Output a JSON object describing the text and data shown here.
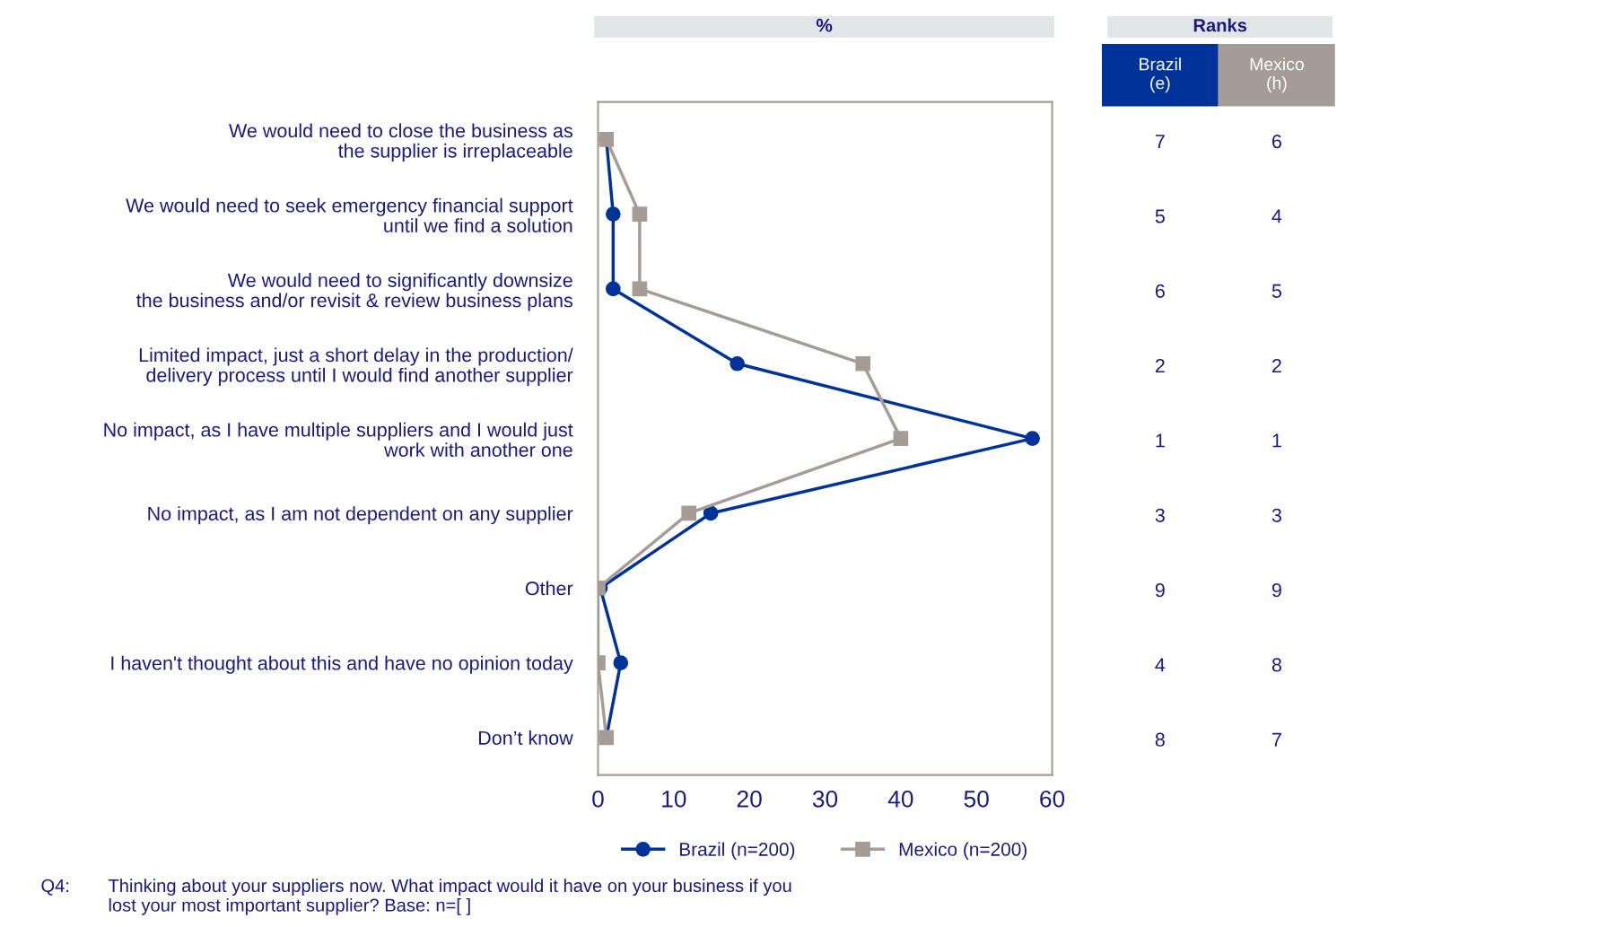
{
  "chart_data": [
    {
      "type": "line",
      "orientation": "horizontal",
      "title": "%",
      "categories": [
        "We would need to close the business as\nthe supplier is irreplaceable",
        "We would need to seek emergency financial support\nuntil we find a solution",
        "We would need to significantly downsize\nthe business and/or revisit & review business plans",
        "Limited impact, just a short delay in the production/\ndelivery process until I would find another supplier",
        "No impact, as I have multiple suppliers and I would just\nwork with another one",
        "No impact, as I am not dependent on any supplier",
        "Other",
        "I haven't thought about this and have no opinion today",
        "Don’t know"
      ],
      "series": [
        {
          "name": "Brazil (n=200)",
          "color": "#003399",
          "marker": "circle",
          "values": [
            1.1,
            2.0,
            2.0,
            18.4,
            57.4,
            14.9,
            0.3,
            3.0,
            1.1
          ]
        },
        {
          "name": "Mexico (n=200)",
          "color": "#a59d95",
          "marker": "square",
          "values": [
            1.1,
            5.5,
            5.5,
            35,
            40,
            12,
            0,
            0,
            1.1
          ]
        }
      ],
      "xlim": [
        0,
        60
      ],
      "xticks": [
        0,
        10,
        20,
        30,
        40,
        50,
        60
      ],
      "grid": false,
      "legend": "bottom",
      "annotations": [
        "Q4:",
        "Thinking about your suppliers now. What impact would it have on your business if you\nlost your most important supplier? Base: n=[ ]"
      ]
    },
    {
      "type": "other",
      "title": "Ranks",
      "colors": [
        "#003399",
        "#a59d95"
      ],
      "annotations": [
        "Brazil\n(e)",
        "Mexico\n(h)",
        "7",
        "6",
        "5",
        "4",
        "6",
        "5",
        "2",
        "2",
        "1",
        "1",
        "3",
        "3",
        "9",
        "9",
        "4",
        "8",
        "8",
        "7"
      ]
    }
  ]
}
